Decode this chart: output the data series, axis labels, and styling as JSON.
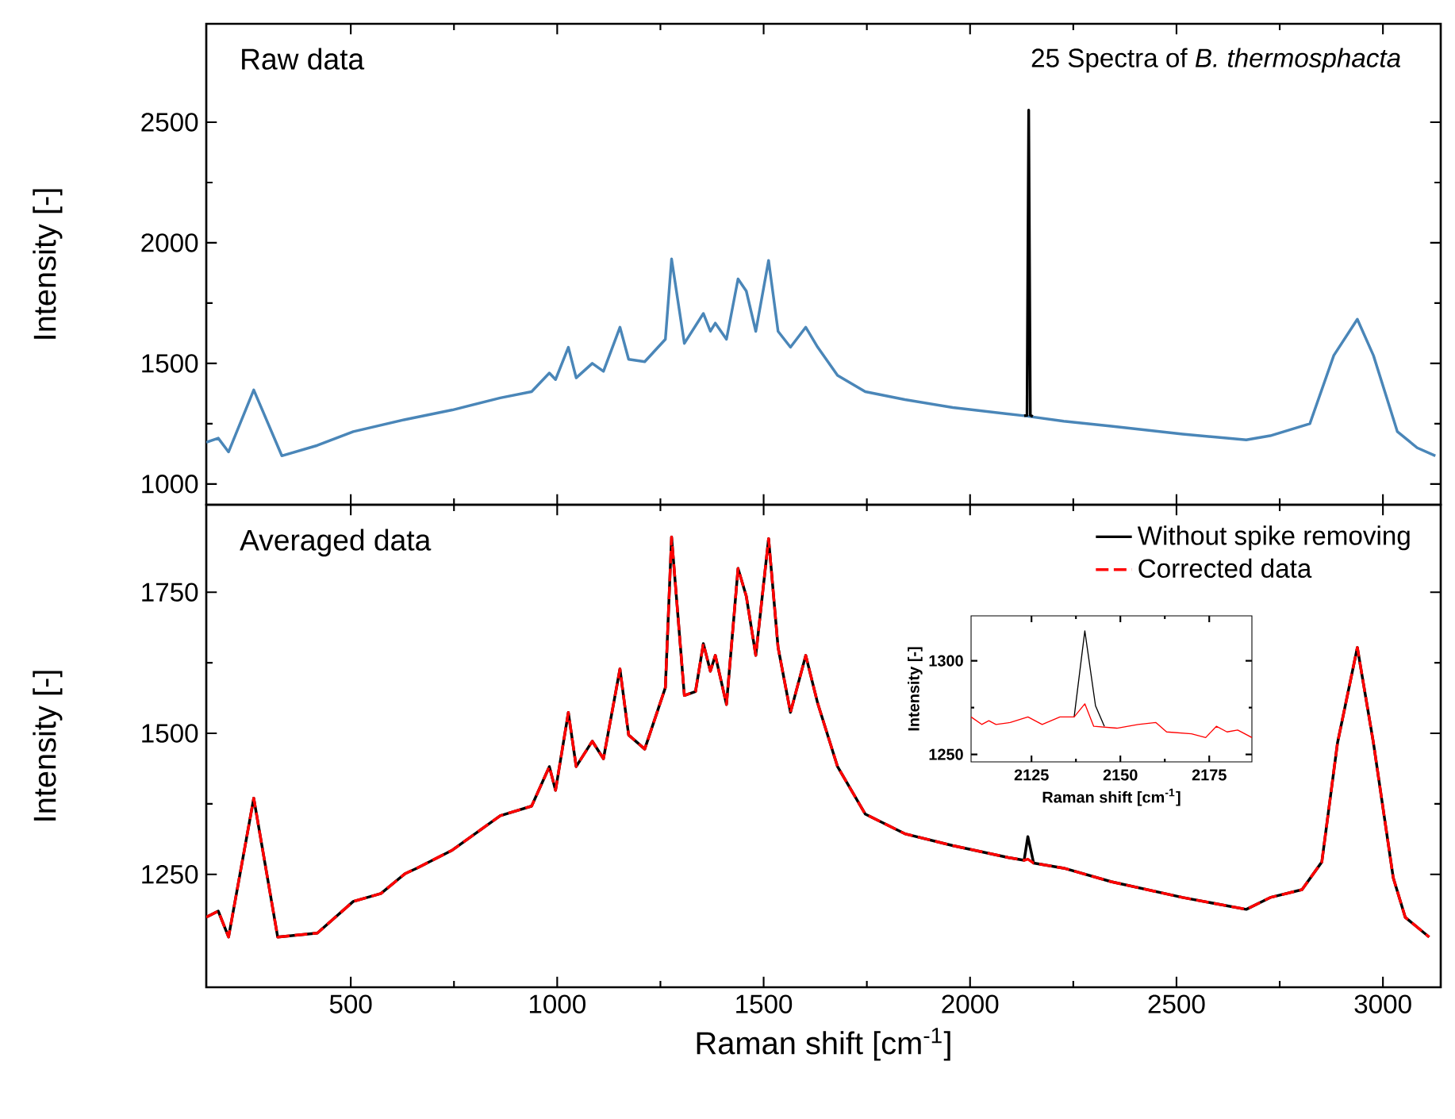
{
  "chart_data": [
    {
      "type": "line",
      "ylabel": "Intensity [-]",
      "annotations": [
        "Raw data",
        "25 Spectra of *B. thermosphacta*"
      ],
      "xlim": [
        150,
        3140
      ],
      "ylim": [
        914,
        2908
      ],
      "xticks": [
        500,
        1000,
        1500,
        2000,
        2500,
        3000
      ],
      "yticks": [
        1000,
        1500,
        2000,
        2500
      ],
      "tick_labels": "y",
      "legend": false,
      "series": [
        {
          "color": "#4a86b8",
          "x": [
            150,
            179,
            204,
            265,
            333,
            419,
            506,
            631,
            746,
            862,
            938,
            981,
            996,
            1027,
            1046,
            1085,
            1112,
            1152,
            1173,
            1212,
            1262,
            1277,
            1308,
            1354,
            1371,
            1383,
            1410,
            1438,
            1458,
            1481,
            1512,
            1535,
            1565,
            1602,
            1631,
            1679,
            1746,
            1842,
            1958,
            2131,
            2227,
            2342,
            2515,
            2669,
            2727,
            2823,
            2881,
            2938,
            2977,
            3035,
            3083,
            3127
          ],
          "values": [
            1173,
            1190,
            1133,
            1390,
            1117,
            1160,
            1217,
            1267,
            1307,
            1357,
            1383,
            1460,
            1433,
            1567,
            1440,
            1500,
            1467,
            1650,
            1517,
            1507,
            1600,
            1933,
            1583,
            1707,
            1633,
            1667,
            1600,
            1850,
            1800,
            1633,
            1927,
            1633,
            1567,
            1650,
            1567,
            1450,
            1383,
            1350,
            1317,
            1283,
            1260,
            1240,
            1207,
            1183,
            1200,
            1250,
            1533,
            1683,
            1533,
            1217,
            1150,
            1117
          ]
        },
        {
          "color": "#000000",
          "x": [
            2131,
            2138,
            2142,
            2146,
            2152
          ],
          "values": [
            1283,
            1285,
            2550,
            1285,
            1280
          ]
        }
      ]
    },
    {
      "type": "line",
      "ylabel": "Intensity [-]",
      "xlabel": "Raman shift [cm$^{-1}$]",
      "annotations": [
        "Averaged data"
      ],
      "xlim": [
        150,
        3140
      ],
      "ylim": [
        1050,
        1905
      ],
      "xticks": [
        500,
        1000,
        1500,
        2000,
        2500,
        3000
      ],
      "yticks": [
        1250,
        1500,
        1750
      ],
      "legend": "top right",
      "series": [
        {
          "name": "Without spike removing",
          "color": "#000000",
          "line_style": "solid",
          "x": [
            150,
            179,
            204,
            265,
            323,
            419,
            506,
            573,
            631,
            660,
            746,
            862,
            938,
            981,
            996,
            1027,
            1046,
            1085,
            1112,
            1152,
            1173,
            1212,
            1262,
            1277,
            1308,
            1335,
            1354,
            1371,
            1383,
            1410,
            1438,
            1458,
            1481,
            1512,
            1535,
            1565,
            1602,
            1631,
            1679,
            1746,
            1842,
            1958,
            2092,
            2131,
            2140,
            2154,
            2227,
            2342,
            2515,
            2669,
            2727,
            2804,
            2852,
            2890,
            2938,
            2977,
            3025,
            3054,
            3112
          ],
          "values": [
            1174,
            1185,
            1139,
            1385,
            1139,
            1146,
            1202,
            1216,
            1251,
            1261,
            1293,
            1354,
            1371,
            1441,
            1399,
            1537,
            1441,
            1486,
            1455,
            1614,
            1497,
            1472,
            1581,
            1848,
            1567,
            1574,
            1659,
            1610,
            1638,
            1551,
            1792,
            1743,
            1638,
            1845,
            1652,
            1537,
            1638,
            1553,
            1441,
            1357,
            1322,
            1301,
            1280,
            1275,
            1317,
            1270,
            1261,
            1237,
            1209,
            1188,
            1209,
            1223,
            1272,
            1483,
            1652,
            1483,
            1244,
            1174,
            1139
          ]
        },
        {
          "name": "Corrected data",
          "color": "#ff0000",
          "line_style": "dashed",
          "x": [
            150,
            179,
            204,
            265,
            323,
            419,
            506,
            573,
            631,
            660,
            746,
            862,
            938,
            981,
            996,
            1027,
            1046,
            1085,
            1112,
            1152,
            1173,
            1212,
            1262,
            1277,
            1308,
            1335,
            1354,
            1371,
            1383,
            1410,
            1438,
            1458,
            1481,
            1512,
            1535,
            1565,
            1602,
            1631,
            1679,
            1746,
            1842,
            1958,
            2092,
            2131,
            2140,
            2154,
            2227,
            2342,
            2515,
            2669,
            2727,
            2804,
            2852,
            2890,
            2938,
            2977,
            3025,
            3054,
            3112
          ],
          "values": [
            1174,
            1185,
            1139,
            1385,
            1139,
            1146,
            1202,
            1216,
            1251,
            1261,
            1293,
            1354,
            1371,
            1441,
            1399,
            1537,
            1441,
            1486,
            1455,
            1614,
            1497,
            1472,
            1581,
            1848,
            1567,
            1574,
            1659,
            1610,
            1638,
            1551,
            1792,
            1743,
            1638,
            1845,
            1652,
            1537,
            1638,
            1553,
            1441,
            1357,
            1322,
            1301,
            1280,
            1275,
            1277,
            1270,
            1261,
            1237,
            1209,
            1188,
            1209,
            1223,
            1272,
            1483,
            1652,
            1483,
            1244,
            1174,
            1139
          ]
        }
      ]
    },
    {
      "type": "line",
      "ylabel": "Intensity [-]",
      "xlabel": "Raman shift [cm$^{-1}$]",
      "xlim": [
        2108,
        2187
      ],
      "ylim": [
        1246,
        1324
      ],
      "xticks": [
        2125,
        2150,
        2175
      ],
      "yticks": [
        1250,
        1300
      ],
      "legend": false,
      "series": [
        {
          "color": "#000000",
          "line_style": "solid",
          "x": [
            2137,
            2140,
            2143,
            2145.5
          ],
          "values": [
            1270,
            1316,
            1276,
            1265
          ]
        },
        {
          "color": "#ff0000",
          "line_style": "solid",
          "x": [
            2108,
            2111,
            2113,
            2115,
            2119,
            2124,
            2128,
            2133,
            2137,
            2140,
            2142.5,
            2149,
            2155,
            2160,
            2163,
            2170,
            2174,
            2177,
            2180,
            2183,
            2187
          ],
          "values": [
            1270,
            1266,
            1268,
            1266,
            1267,
            1270,
            1266,
            1270,
            1270,
            1277,
            1265,
            1264,
            1266,
            1267,
            1262,
            1261,
            1259,
            1265,
            1262,
            1263,
            1259
          ]
        }
      ]
    }
  ]
}
